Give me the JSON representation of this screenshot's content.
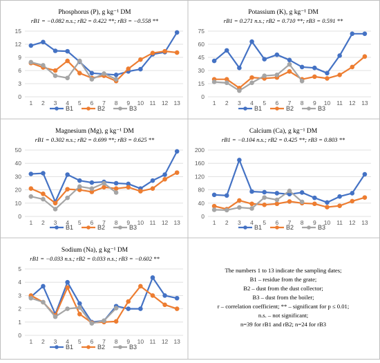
{
  "colors": {
    "B1": "#4472C4",
    "B2": "#ED7D31",
    "B3": "#A5A5A5",
    "grid": "#D9D9D9",
    "border": "#BFBFBF"
  },
  "chart_data": [
    {
      "type": "line",
      "title": "Phosphorus (P), g kg⁻¹ DM",
      "correlation": "rB1 = −0.082 n.s.; rB2 = 0.422 **; rB3 = −0.558 **",
      "categories": [
        "1",
        "2",
        "3",
        "4",
        "5",
        "6",
        "7",
        "8",
        "9",
        "10",
        "11",
        "12",
        "13"
      ],
      "ylim": [
        0,
        15
      ],
      "yticks": [
        "0",
        "3",
        "6",
        "9",
        "12",
        "15"
      ],
      "series": [
        {
          "name": "B1",
          "values": [
            11.7,
            12.5,
            10.5,
            10.4,
            8.0,
            5.4,
            5.2,
            5.0,
            5.8,
            6.3,
            9.7,
            10.2,
            14.7
          ]
        },
        {
          "name": "B2",
          "values": [
            7.7,
            6.7,
            6.0,
            8.2,
            5.4,
            4.3,
            4.8,
            3.6,
            6.4,
            8.5,
            10.0,
            10.4,
            10.1
          ]
        },
        {
          "name": "B3",
          "values": [
            7.9,
            7.2,
            4.8,
            4.3,
            8.2,
            4.0,
            5.3,
            4.0,
            null,
            null,
            null,
            null,
            null
          ]
        }
      ]
    },
    {
      "type": "line",
      "title": "Potassium (K), g kg⁻¹ DM",
      "correlation": "rB1 = 0.271 n.s.; rB2 = 0.710 **; rB3 = 0.591 **",
      "categories": [
        "1",
        "2",
        "3",
        "4",
        "5",
        "6",
        "7",
        "8",
        "9",
        "10",
        "11",
        "12",
        "13"
      ],
      "ylim": [
        0,
        75
      ],
      "yticks": [
        "0",
        "15",
        "30",
        "45",
        "60",
        "75"
      ],
      "series": [
        {
          "name": "B1",
          "values": [
            41,
            53,
            33,
            63,
            43,
            48,
            42,
            34,
            33,
            27,
            47,
            72,
            72
          ]
        },
        {
          "name": "B2",
          "values": [
            20,
            20,
            10,
            22,
            21,
            22,
            29,
            20,
            23,
            21,
            25,
            34,
            46
          ]
        },
        {
          "name": "B3",
          "values": [
            17,
            16,
            7,
            16,
            24,
            25,
            37,
            18,
            null,
            null,
            null,
            null,
            null
          ]
        }
      ]
    },
    {
      "type": "line",
      "title": "Magnesium (Mg), g kg⁻¹ DM",
      "correlation": "rB1 = 0.302 n.s.; rB2 = 0.699 **; rB3 = 0.625 **",
      "categories": [
        "1",
        "2",
        "3",
        "4",
        "5",
        "6",
        "7",
        "8",
        "9",
        "10",
        "11",
        "12",
        "13"
      ],
      "ylim": [
        0,
        50
      ],
      "yticks": [
        "0",
        "10",
        "20",
        "30",
        "40",
        "50"
      ],
      "series": [
        {
          "name": "B1",
          "values": [
            32,
            32.5,
            11,
            31.5,
            27,
            25.5,
            26,
            25,
            24.5,
            21,
            27,
            31.5,
            49
          ]
        },
        {
          "name": "B2",
          "values": [
            21,
            17,
            10,
            20.5,
            20,
            18.5,
            22,
            21,
            22,
            19,
            21,
            28,
            33
          ]
        },
        {
          "name": "B3",
          "values": [
            15,
            13,
            5.5,
            14,
            22.5,
            21,
            25,
            18,
            null,
            null,
            null,
            null,
            null
          ]
        }
      ]
    },
    {
      "type": "line",
      "title": "Calcium (Ca), g kg⁻¹ DM",
      "correlation": "rB1 = −0.104 n.s.; rB2 = 0.425 **; rB3 = 0.803 **",
      "categories": [
        "1",
        "2",
        "3",
        "4",
        "5",
        "6",
        "7",
        "8",
        "9",
        "10",
        "11",
        "12",
        "13"
      ],
      "ylim": [
        0,
        200
      ],
      "yticks": [
        "0",
        "40",
        "80",
        "120",
        "160",
        "200"
      ],
      "series": [
        {
          "name": "B1",
          "values": [
            65,
            63,
            170,
            75,
            73,
            70,
            67,
            72,
            56,
            42,
            60,
            70,
            127
          ]
        },
        {
          "name": "B2",
          "values": [
            31,
            22,
            48,
            38,
            35,
            38,
            45,
            40,
            38,
            28,
            32,
            46,
            57
          ]
        },
        {
          "name": "B3",
          "values": [
            20,
            19,
            27,
            24,
            57,
            50,
            77,
            44,
            null,
            null,
            null,
            null,
            null
          ]
        }
      ]
    },
    {
      "type": "line",
      "title": "Sodium (Na), g kg⁻¹ DM",
      "correlation": "rB1 = −0.033 n.s.; rB2 = 0.033 n.s.; rB3 = −0.602 **",
      "categories": [
        "1",
        "2",
        "3",
        "4",
        "5",
        "6",
        "7",
        "8",
        "9",
        "10",
        "11",
        "12",
        "13"
      ],
      "ylim": [
        0,
        5
      ],
      "yticks": [
        "0",
        "1",
        "2",
        "3",
        "4",
        "5"
      ],
      "series": [
        {
          "name": "B1",
          "values": [
            2.9,
            3.7,
            1.6,
            4.0,
            2.4,
            1.0,
            1.1,
            2.2,
            2.0,
            2.0,
            4.35,
            3.0,
            2.8
          ]
        },
        {
          "name": "B2",
          "values": [
            3.0,
            2.5,
            1.5,
            3.6,
            1.6,
            0.95,
            1.0,
            1.05,
            2.55,
            3.7,
            3.0,
            2.3,
            2.0
          ]
        },
        {
          "name": "B3",
          "values": [
            2.8,
            2.5,
            1.4,
            2.0,
            2.1,
            0.9,
            1.1,
            2.05,
            null,
            null,
            null,
            null,
            null
          ]
        }
      ]
    }
  ],
  "notes": {
    "line1": "The numbers 1 to 13 indicate the sampling dates;",
    "line2": "B1 – residue from the grate;",
    "line3": "B2 – dust from the dust collector;",
    "line4": "B3 – dust from the boiler;",
    "line5": "r –  correlation coefficient; ** – significant for p ≤ 0.01;",
    "line6": "n.s. – not significant;",
    "line7": "n=39 for rB1 and rB2; n=24 for rB3"
  }
}
